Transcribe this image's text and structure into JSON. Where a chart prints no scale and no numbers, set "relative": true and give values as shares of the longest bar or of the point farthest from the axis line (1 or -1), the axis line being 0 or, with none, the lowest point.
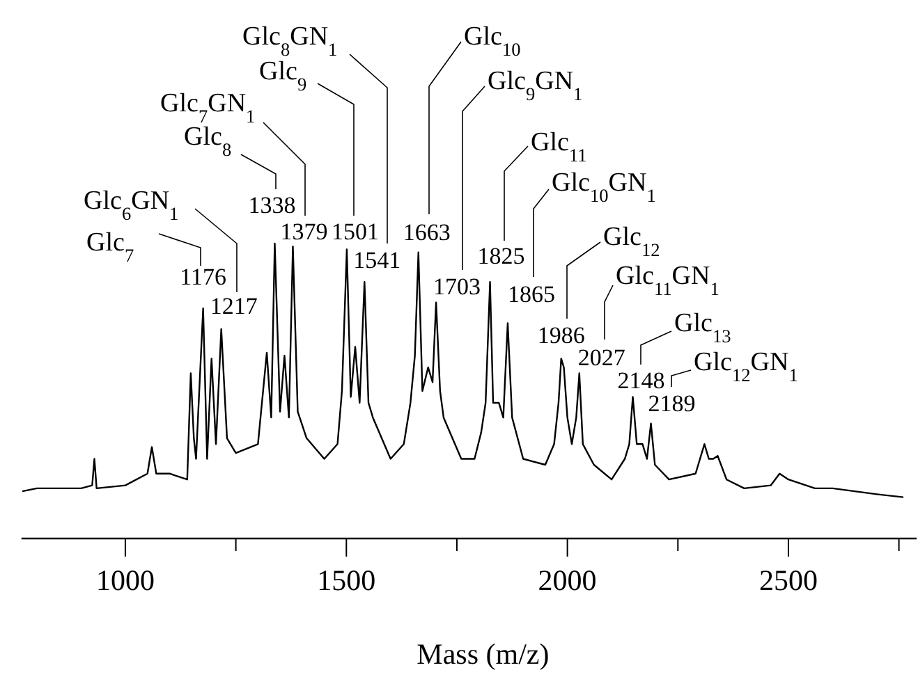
{
  "chart_data": {
    "type": "line",
    "relative": true,
    "xlabel": "Mass (m/z)",
    "xlim": [
      765,
      2790
    ],
    "xticks": [
      1000,
      1500,
      2000,
      2500,
      {
        "value": 1250,
        "label": null
      },
      {
        "value": 1750,
        "label": null
      },
      {
        "value": 2250,
        "label": null
      },
      {
        "value": 2750,
        "label": null
      }
    ],
    "grid": false,
    "marker": "none",
    "line_style": "solid",
    "series": [
      {
        "color": "#000000",
        "x": [
          767,
          800,
          900,
          925,
          930,
          935,
          1000,
          1050,
          1060,
          1070,
          1100,
          1140,
          1148,
          1155,
          1160,
          1176,
          1185,
          1195,
          1205,
          1217,
          1230,
          1250,
          1300,
          1320,
          1330,
          1338,
          1350,
          1360,
          1370,
          1379,
          1390,
          1410,
          1450,
          1480,
          1490,
          1501,
          1510,
          1520,
          1530,
          1541,
          1550,
          1560,
          1600,
          1630,
          1645,
          1655,
          1663,
          1672,
          1685,
          1695,
          1703,
          1712,
          1720,
          1760,
          1790,
          1805,
          1815,
          1825,
          1832,
          1845,
          1855,
          1865,
          1875,
          1900,
          1950,
          1970,
          1980,
          1986,
          1992,
          2000,
          2010,
          2020,
          2027,
          2035,
          2060,
          2100,
          2130,
          2140,
          2148,
          2157,
          2170,
          2180,
          2189,
          2198,
          2230,
          2290,
          2310,
          2320,
          2330,
          2340,
          2360,
          2400,
          2460,
          2480,
          2500,
          2560,
          2600,
          2650,
          2700,
          2760
        ],
        "values": [
          0.16,
          0.17,
          0.17,
          0.18,
          0.27,
          0.17,
          0.18,
          0.22,
          0.31,
          0.22,
          0.22,
          0.2,
          0.56,
          0.34,
          0.27,
          0.78,
          0.27,
          0.61,
          0.32,
          0.71,
          0.34,
          0.29,
          0.32,
          0.63,
          0.41,
          1,
          0.43,
          0.62,
          0.41,
          0.99,
          0.43,
          0.34,
          0.27,
          0.32,
          0.5,
          0.98,
          0.48,
          0.65,
          0.46,
          0.87,
          0.46,
          0.41,
          0.27,
          0.32,
          0.46,
          0.62,
          0.97,
          0.5,
          0.58,
          0.53,
          0.8,
          0.5,
          0.41,
          0.27,
          0.27,
          0.36,
          0.46,
          0.87,
          0.46,
          0.46,
          0.41,
          0.73,
          0.41,
          0.27,
          0.25,
          0.32,
          0.46,
          0.61,
          0.58,
          0.41,
          0.32,
          0.41,
          0.56,
          0.32,
          0.25,
          0.2,
          0.27,
          0.32,
          0.48,
          0.32,
          0.32,
          0.27,
          0.39,
          0.25,
          0.2,
          0.22,
          0.32,
          0.27,
          0.27,
          0.28,
          0.2,
          0.17,
          0.18,
          0.22,
          0.2,
          0.17,
          0.17,
          0.16,
          0.15,
          0.14
        ]
      }
    ],
    "annotations": [
      "Glc$_{7}$",
      {
        "text": "1176",
        "x": 1176,
        "y": 0.78
      },
      "Glc$_{6}$GN$_{1}$",
      {
        "text": "1217",
        "x": 1217,
        "y": 0.71
      },
      "Glc$_{8}$",
      {
        "text": "1338",
        "x": 1338,
        "y": 1
      },
      "Glc$_{7}$GN$_{1}$",
      {
        "text": "1379",
        "x": 1379,
        "y": 0.99
      },
      "Glc$_{9}$",
      {
        "text": "1501",
        "x": 1501,
        "y": 0.98
      },
      "Glc$_{8}$GN$_{1}$",
      {
        "text": "1541",
        "x": 1541,
        "y": 0.87
      },
      "Glc$_{10}$",
      {
        "text": "1663",
        "x": 1663,
        "y": 0.97
      },
      "Glc$_{9}$GN$_{1}$",
      {
        "text": "1703",
        "x": 1703,
        "y": 0.8
      },
      "Glc$_{11}$",
      {
        "text": "1825",
        "x": 1825,
        "y": 0.87
      },
      "Glc$_{10}$GN$_{1}$",
      {
        "text": "1865",
        "x": 1865,
        "y": 0.73
      },
      "Glc$_{12}$",
      {
        "text": "1986",
        "x": 1986,
        "y": 0.61
      },
      "Glc$_{11}$GN$_{1}$",
      {
        "text": "2027",
        "x": 2027,
        "y": 0.56
      },
      "Glc$_{13}$",
      {
        "text": "2148",
        "x": 2148,
        "y": 0.48
      },
      "Glc$_{12}$GN$_{1}$",
      {
        "text": "2189",
        "x": 2189,
        "y": 0.39
      }
    ]
  }
}
